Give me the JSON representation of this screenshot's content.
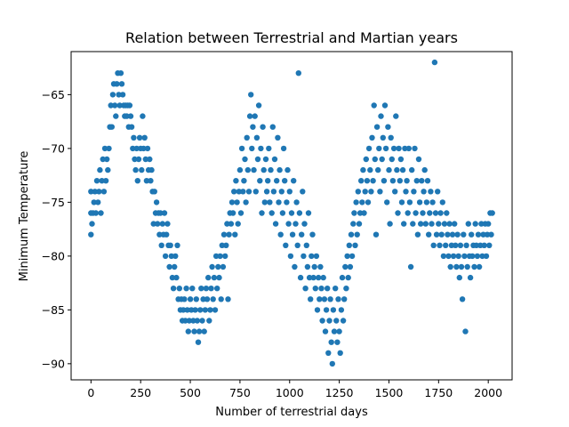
{
  "chart_data": {
    "type": "scatter",
    "title": "Relation between Terrestrial and Martian years",
    "xlabel": "Number of terrestrial days",
    "ylabel": "Minimum Temperature",
    "xlim": [
      -100,
      2120
    ],
    "ylim": [
      -91.5,
      -61
    ],
    "xticks": [
      0,
      250,
      500,
      750,
      1000,
      1250,
      1500,
      1750,
      2000
    ],
    "yticks": [
      -90,
      -85,
      -80,
      -75,
      -70,
      -65
    ],
    "xtick_labels": [
      "0",
      "250",
      "500",
      "750",
      "1000",
      "1250",
      "1500",
      "1750",
      "2000"
    ],
    "ytick_labels": [
      "−90",
      "−85",
      "−80",
      "−75",
      "−70",
      "−65"
    ],
    "grid": false,
    "marker_color": "#1f77b4",
    "points": [
      [
        0,
        -76
      ],
      [
        0,
        -78
      ],
      [
        0,
        -74
      ],
      [
        5,
        -77
      ],
      [
        10,
        -76
      ],
      [
        15,
        -75
      ],
      [
        20,
        -74
      ],
      [
        25,
        -76
      ],
      [
        30,
        -73
      ],
      [
        35,
        -75
      ],
      [
        40,
        -74
      ],
      [
        45,
        -72
      ],
      [
        50,
        -76
      ],
      [
        55,
        -73
      ],
      [
        60,
        -71
      ],
      [
        65,
        -74
      ],
      [
        70,
        -70
      ],
      [
        75,
        -73
      ],
      [
        80,
        -71
      ],
      [
        85,
        -72
      ],
      [
        90,
        -70
      ],
      [
        95,
        -68
      ],
      [
        100,
        -66
      ],
      [
        105,
        -68
      ],
      [
        110,
        -65
      ],
      [
        115,
        -64
      ],
      [
        120,
        -66
      ],
      [
        125,
        -67
      ],
      [
        130,
        -64
      ],
      [
        135,
        -63
      ],
      [
        140,
        -65
      ],
      [
        145,
        -66
      ],
      [
        150,
        -63
      ],
      [
        155,
        -64
      ],
      [
        160,
        -65
      ],
      [
        165,
        -66
      ],
      [
        170,
        -67
      ],
      [
        175,
        -66
      ],
      [
        180,
        -67
      ],
      [
        185,
        -66
      ],
      [
        190,
        -68
      ],
      [
        195,
        -66
      ],
      [
        200,
        -67
      ],
      [
        205,
        -68
      ],
      [
        210,
        -70
      ],
      [
        215,
        -69
      ],
      [
        220,
        -71
      ],
      [
        225,
        -72
      ],
      [
        230,
        -70
      ],
      [
        235,
        -73
      ],
      [
        240,
        -71
      ],
      [
        245,
        -69
      ],
      [
        250,
        -70
      ],
      [
        255,
        -72
      ],
      [
        260,
        -67
      ],
      [
        265,
        -70
      ],
      [
        270,
        -69
      ],
      [
        275,
        -71
      ],
      [
        280,
        -73
      ],
      [
        285,
        -70
      ],
      [
        290,
        -72
      ],
      [
        295,
        -71
      ],
      [
        300,
        -73
      ],
      [
        305,
        -72
      ],
      [
        310,
        -74
      ],
      [
        315,
        -77
      ],
      [
        320,
        -74
      ],
      [
        325,
        -76
      ],
      [
        330,
        -75
      ],
      [
        335,
        -77
      ],
      [
        340,
        -76
      ],
      [
        345,
        -78
      ],
      [
        350,
        -76
      ],
      [
        355,
        -79
      ],
      [
        360,
        -77
      ],
      [
        365,
        -78
      ],
      [
        370,
        -76
      ],
      [
        375,
        -80
      ],
      [
        380,
        -78
      ],
      [
        385,
        -77
      ],
      [
        390,
        -79
      ],
      [
        395,
        -81
      ],
      [
        400,
        -79
      ],
      [
        405,
        -80
      ],
      [
        410,
        -82
      ],
      [
        415,
        -83
      ],
      [
        420,
        -81
      ],
      [
        425,
        -80
      ],
      [
        430,
        -82
      ],
      [
        435,
        -79
      ],
      [
        440,
        -84
      ],
      [
        445,
        -83
      ],
      [
        450,
        -85
      ],
      [
        455,
        -84
      ],
      [
        460,
        -86
      ],
      [
        465,
        -85
      ],
      [
        470,
        -84
      ],
      [
        475,
        -86
      ],
      [
        480,
        -83
      ],
      [
        485,
        -85
      ],
      [
        490,
        -87
      ],
      [
        495,
        -86
      ],
      [
        500,
        -84
      ],
      [
        505,
        -85
      ],
      [
        510,
        -83
      ],
      [
        515,
        -86
      ],
      [
        520,
        -87
      ],
      [
        525,
        -85
      ],
      [
        530,
        -84
      ],
      [
        535,
        -86
      ],
      [
        540,
        -88
      ],
      [
        545,
        -87
      ],
      [
        550,
        -85
      ],
      [
        555,
        -83
      ],
      [
        560,
        -86
      ],
      [
        565,
        -84
      ],
      [
        570,
        -87
      ],
      [
        575,
        -85
      ],
      [
        580,
        -83
      ],
      [
        585,
        -84
      ],
      [
        590,
        -82
      ],
      [
        595,
        -86
      ],
      [
        600,
        -85
      ],
      [
        605,
        -83
      ],
      [
        610,
        -81
      ],
      [
        615,
        -84
      ],
      [
        620,
        -82
      ],
      [
        625,
        -85
      ],
      [
        630,
        -80
      ],
      [
        635,
        -83
      ],
      [
        640,
        -81
      ],
      [
        645,
        -82
      ],
      [
        650,
        -80
      ],
      [
        655,
        -84
      ],
      [
        660,
        -79
      ],
      [
        665,
        -81
      ],
      [
        670,
        -78
      ],
      [
        675,
        -80
      ],
      [
        680,
        -79
      ],
      [
        685,
        -77
      ],
      [
        690,
        -84
      ],
      [
        695,
        -78
      ],
      [
        700,
        -76
      ],
      [
        705,
        -77
      ],
      [
        710,
        -75
      ],
      [
        715,
        -76
      ],
      [
        720,
        -74
      ],
      [
        725,
        -78
      ],
      [
        730,
        -73
      ],
      [
        735,
        -75
      ],
      [
        740,
        -77
      ],
      [
        745,
        -74
      ],
      [
        750,
        -72
      ],
      [
        755,
        -76
      ],
      [
        760,
        -70
      ],
      [
        765,
        -74
      ],
      [
        770,
        -73
      ],
      [
        775,
        -71
      ],
      [
        780,
        -75
      ],
      [
        785,
        -69
      ],
      [
        790,
        -72
      ],
      [
        795,
        -74
      ],
      [
        800,
        -67
      ],
      [
        805,
        -65
      ],
      [
        810,
        -70
      ],
      [
        815,
        -68
      ],
      [
        820,
        -72
      ],
      [
        825,
        -67
      ],
      [
        830,
        -74
      ],
      [
        835,
        -69
      ],
      [
        840,
        -71
      ],
      [
        845,
        -66
      ],
      [
        850,
        -73
      ],
      [
        855,
        -70
      ],
      [
        860,
        -76
      ],
      [
        865,
        -68
      ],
      [
        870,
        -72
      ],
      [
        875,
        -75
      ],
      [
        880,
        -71
      ],
      [
        885,
        -74
      ],
      [
        890,
        -73
      ],
      [
        895,
        -70
      ],
      [
        900,
        -75
      ],
      [
        905,
        -72
      ],
      [
        910,
        -76
      ],
      [
        915,
        -68
      ],
      [
        920,
        -74
      ],
      [
        925,
        -71
      ],
      [
        930,
        -77
      ],
      [
        935,
        -73
      ],
      [
        940,
        -69
      ],
      [
        945,
        -75
      ],
      [
        950,
        -72
      ],
      [
        955,
        -78
      ],
      [
        960,
        -74
      ],
      [
        965,
        -76
      ],
      [
        970,
        -70
      ],
      [
        975,
        -73
      ],
      [
        980,
        -79
      ],
      [
        985,
        -75
      ],
      [
        990,
        -72
      ],
      [
        995,
        -77
      ],
      [
        1000,
        -74
      ],
      [
        1005,
        -80
      ],
      [
        1010,
        -76
      ],
      [
        1015,
        -78
      ],
      [
        1020,
        -73
      ],
      [
        1025,
        -81
      ],
      [
        1030,
        -77
      ],
      [
        1035,
        -75
      ],
      [
        1040,
        -79
      ],
      [
        1045,
        -63
      ],
      [
        1050,
        -76
      ],
      [
        1055,
        -82
      ],
      [
        1060,
        -78
      ],
      [
        1065,
        -74
      ],
      [
        1070,
        -80
      ],
      [
        1075,
        -77
      ],
      [
        1080,
        -83
      ],
      [
        1085,
        -79
      ],
      [
        1090,
        -81
      ],
      [
        1095,
        -76
      ],
      [
        1100,
        -82
      ],
      [
        1105,
        -84
      ],
      [
        1110,
        -80
      ],
      [
        1115,
        -78
      ],
      [
        1120,
        -82
      ],
      [
        1125,
        -81
      ],
      [
        1130,
        -83
      ],
      [
        1135,
        -80
      ],
      [
        1140,
        -85
      ],
      [
        1145,
        -82
      ],
      [
        1150,
        -84
      ],
      [
        1155,
        -81
      ],
      [
        1160,
        -83
      ],
      [
        1165,
        -86
      ],
      [
        1170,
        -82
      ],
      [
        1175,
        -84
      ],
      [
        1180,
        -87
      ],
      [
        1185,
        -85
      ],
      [
        1190,
        -83
      ],
      [
        1195,
        -89
      ],
      [
        1200,
        -86
      ],
      [
        1205,
        -84
      ],
      [
        1210,
        -88
      ],
      [
        1215,
        -90
      ],
      [
        1220,
        -85
      ],
      [
        1225,
        -87
      ],
      [
        1230,
        -83
      ],
      [
        1235,
        -86
      ],
      [
        1240,
        -88
      ],
      [
        1245,
        -84
      ],
      [
        1250,
        -87
      ],
      [
        1255,
        -89
      ],
      [
        1260,
        -85
      ],
      [
        1265,
        -82
      ],
      [
        1270,
        -86
      ],
      [
        1275,
        -84
      ],
      [
        1280,
        -81
      ],
      [
        1285,
        -83
      ],
      [
        1290,
        -80
      ],
      [
        1295,
        -82
      ],
      [
        1300,
        -79
      ],
      [
        1305,
        -81
      ],
      [
        1310,
        -78
      ],
      [
        1315,
        -80
      ],
      [
        1320,
        -77
      ],
      [
        1325,
        -76
      ],
      [
        1330,
        -79
      ],
      [
        1335,
        -75
      ],
      [
        1340,
        -78
      ],
      [
        1345,
        -74
      ],
      [
        1350,
        -77
      ],
      [
        1355,
        -76
      ],
      [
        1360,
        -73
      ],
      [
        1365,
        -75
      ],
      [
        1370,
        -72
      ],
      [
        1375,
        -76
      ],
      [
        1380,
        -74
      ],
      [
        1385,
        -71
      ],
      [
        1390,
        -73
      ],
      [
        1395,
        -75
      ],
      [
        1400,
        -70
      ],
      [
        1405,
        -72
      ],
      [
        1410,
        -74
      ],
      [
        1415,
        -69
      ],
      [
        1420,
        -73
      ],
      [
        1425,
        -66
      ],
      [
        1430,
        -71
      ],
      [
        1435,
        -78
      ],
      [
        1440,
        -68
      ],
      [
        1445,
        -72
      ],
      [
        1450,
        -70
      ],
      [
        1455,
        -74
      ],
      [
        1460,
        -67
      ],
      [
        1465,
        -71
      ],
      [
        1470,
        -69
      ],
      [
        1475,
        -73
      ],
      [
        1480,
        -66
      ],
      [
        1485,
        -70
      ],
      [
        1490,
        -75
      ],
      [
        1495,
        -68
      ],
      [
        1500,
        -72
      ],
      [
        1505,
        -77
      ],
      [
        1510,
        -69
      ],
      [
        1515,
        -71
      ],
      [
        1520,
        -73
      ],
      [
        1525,
        -70
      ],
      [
        1530,
        -74
      ],
      [
        1535,
        -67
      ],
      [
        1540,
        -72
      ],
      [
        1545,
        -76
      ],
      [
        1550,
        -70
      ],
      [
        1555,
        -73
      ],
      [
        1560,
        -71
      ],
      [
        1565,
        -75
      ],
      [
        1570,
        -72
      ],
      [
        1575,
        -77
      ],
      [
        1580,
        -70
      ],
      [
        1585,
        -74
      ],
      [
        1590,
        -73
      ],
      [
        1595,
        -76
      ],
      [
        1600,
        -70
      ],
      [
        1605,
        -75
      ],
      [
        1610,
        -81
      ],
      [
        1615,
        -72
      ],
      [
        1620,
        -77
      ],
      [
        1625,
        -74
      ],
      [
        1630,
        -70
      ],
      [
        1635,
        -76
      ],
      [
        1640,
        -73
      ],
      [
        1645,
        -78
      ],
      [
        1650,
        -71
      ],
      [
        1655,
        -75
      ],
      [
        1660,
        -77
      ],
      [
        1665,
        -73
      ],
      [
        1670,
        -76
      ],
      [
        1675,
        -74
      ],
      [
        1680,
        -72
      ],
      [
        1685,
        -77
      ],
      [
        1690,
        -75
      ],
      [
        1695,
        -73
      ],
      [
        1700,
        -78
      ],
      [
        1705,
        -76
      ],
      [
        1710,
        -74
      ],
      [
        1715,
        -77
      ],
      [
        1720,
        -75
      ],
      [
        1725,
        -79
      ],
      [
        1730,
        -62
      ],
      [
        1735,
        -76
      ],
      [
        1740,
        -78
      ],
      [
        1745,
        -74
      ],
      [
        1750,
        -77
      ],
      [
        1755,
        -79
      ],
      [
        1760,
        -76
      ],
      [
        1765,
        -78
      ],
      [
        1770,
        -75
      ],
      [
        1775,
        -80
      ],
      [
        1780,
        -77
      ],
      [
        1785,
        -79
      ],
      [
        1790,
        -76
      ],
      [
        1795,
        -78
      ],
      [
        1800,
        -80
      ],
      [
        1805,
        -77
      ],
      [
        1810,
        -81
      ],
      [
        1815,
        -79
      ],
      [
        1820,
        -78
      ],
      [
        1825,
        -80
      ],
      [
        1830,
        -77
      ],
      [
        1835,
        -79
      ],
      [
        1840,
        -81
      ],
      [
        1845,
        -78
      ],
      [
        1850,
        -80
      ],
      [
        1855,
        -82
      ],
      [
        1860,
        -79
      ],
      [
        1865,
        -81
      ],
      [
        1870,
        -84
      ],
      [
        1875,
        -78
      ],
      [
        1880,
        -80
      ],
      [
        1885,
        -87
      ],
      [
        1890,
        -79
      ],
      [
        1895,
        -81
      ],
      [
        1900,
        -77
      ],
      [
        1905,
        -80
      ],
      [
        1910,
        -82
      ],
      [
        1915,
        -78
      ],
      [
        1920,
        -80
      ],
      [
        1925,
        -79
      ],
      [
        1930,
        -81
      ],
      [
        1935,
        -77
      ],
      [
        1940,
        -79
      ],
      [
        1945,
        -80
      ],
      [
        1950,
        -78
      ],
      [
        1955,
        -81
      ],
      [
        1960,
        -79
      ],
      [
        1965,
        -77
      ],
      [
        1970,
        -80
      ],
      [
        1975,
        -78
      ],
      [
        1980,
        -79
      ],
      [
        1985,
        -77
      ],
      [
        1990,
        -80
      ],
      [
        1995,
        -78
      ],
      [
        2000,
        -77
      ],
      [
        2005,
        -79
      ],
      [
        2010,
        -76
      ],
      [
        2015,
        -78
      ],
      [
        2020,
        -76
      ]
    ]
  }
}
